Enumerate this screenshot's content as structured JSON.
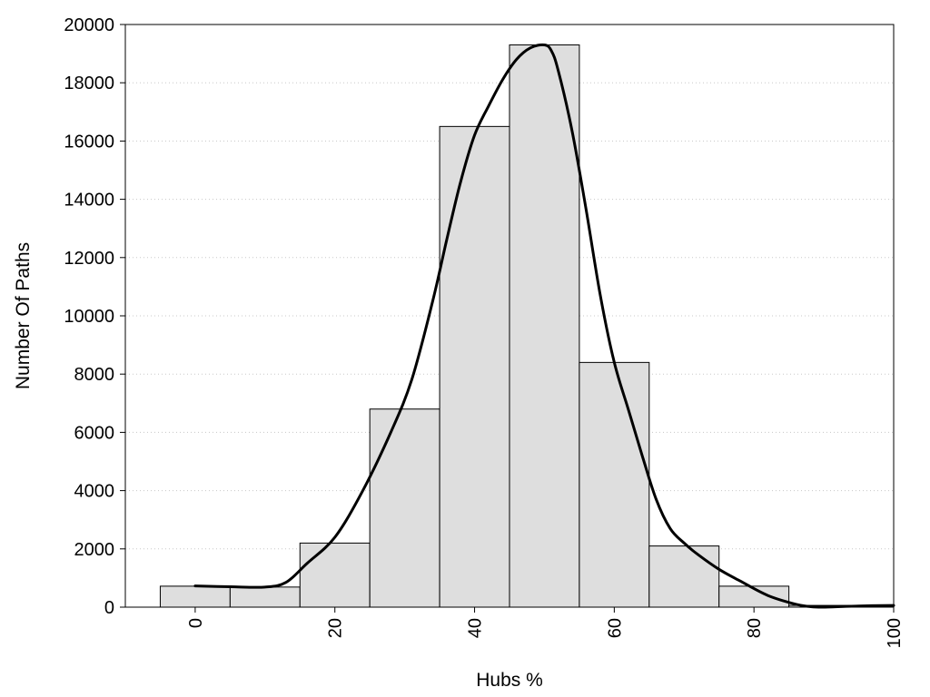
{
  "chart_data": {
    "type": "bar",
    "subtype": "histogram-with-density-curve",
    "xlabel": "Hubs %",
    "ylabel": "Number Of Paths",
    "xlim": [
      -10,
      100
    ],
    "ylim": [
      0,
      20000
    ],
    "x_ticks": [
      0,
      20,
      40,
      60,
      80,
      100
    ],
    "y_ticks": [
      0,
      2000,
      4000,
      6000,
      8000,
      10000,
      12000,
      14000,
      16000,
      18000,
      20000
    ],
    "grid": "horizontal-dotted",
    "bin_width": 10,
    "bars": [
      {
        "center": 0,
        "value": 720
      },
      {
        "center": 10,
        "value": 690
      },
      {
        "center": 20,
        "value": 2200
      },
      {
        "center": 30,
        "value": 6800
      },
      {
        "center": 40,
        "value": 16500
      },
      {
        "center": 50,
        "value": 19300
      },
      {
        "center": 60,
        "value": 8400
      },
      {
        "center": 70,
        "value": 2100
      },
      {
        "center": 80,
        "value": 720
      },
      {
        "center": 90,
        "value": 60
      },
      {
        "center": 100,
        "value": 10
      }
    ],
    "density_curve": {
      "x": [
        0,
        5,
        10,
        13,
        16,
        20,
        24,
        28,
        31,
        34,
        36,
        38,
        40,
        42,
        44,
        46,
        48,
        50,
        51,
        52,
        54,
        56,
        58,
        60,
        62,
        64,
        66,
        68,
        70,
        72,
        75,
        78,
        82,
        86,
        88,
        90,
        95,
        100
      ],
      "y": [
        730,
        700,
        690,
        850,
        1500,
        2400,
        4000,
        6000,
        7800,
        10500,
        12600,
        14600,
        16200,
        17200,
        18100,
        18800,
        19200,
        19300,
        19100,
        18400,
        16300,
        13600,
        10700,
        8400,
        6800,
        5200,
        3700,
        2700,
        2200,
        1800,
        1300,
        900,
        400,
        100,
        20,
        0,
        40,
        60
      ]
    }
  }
}
